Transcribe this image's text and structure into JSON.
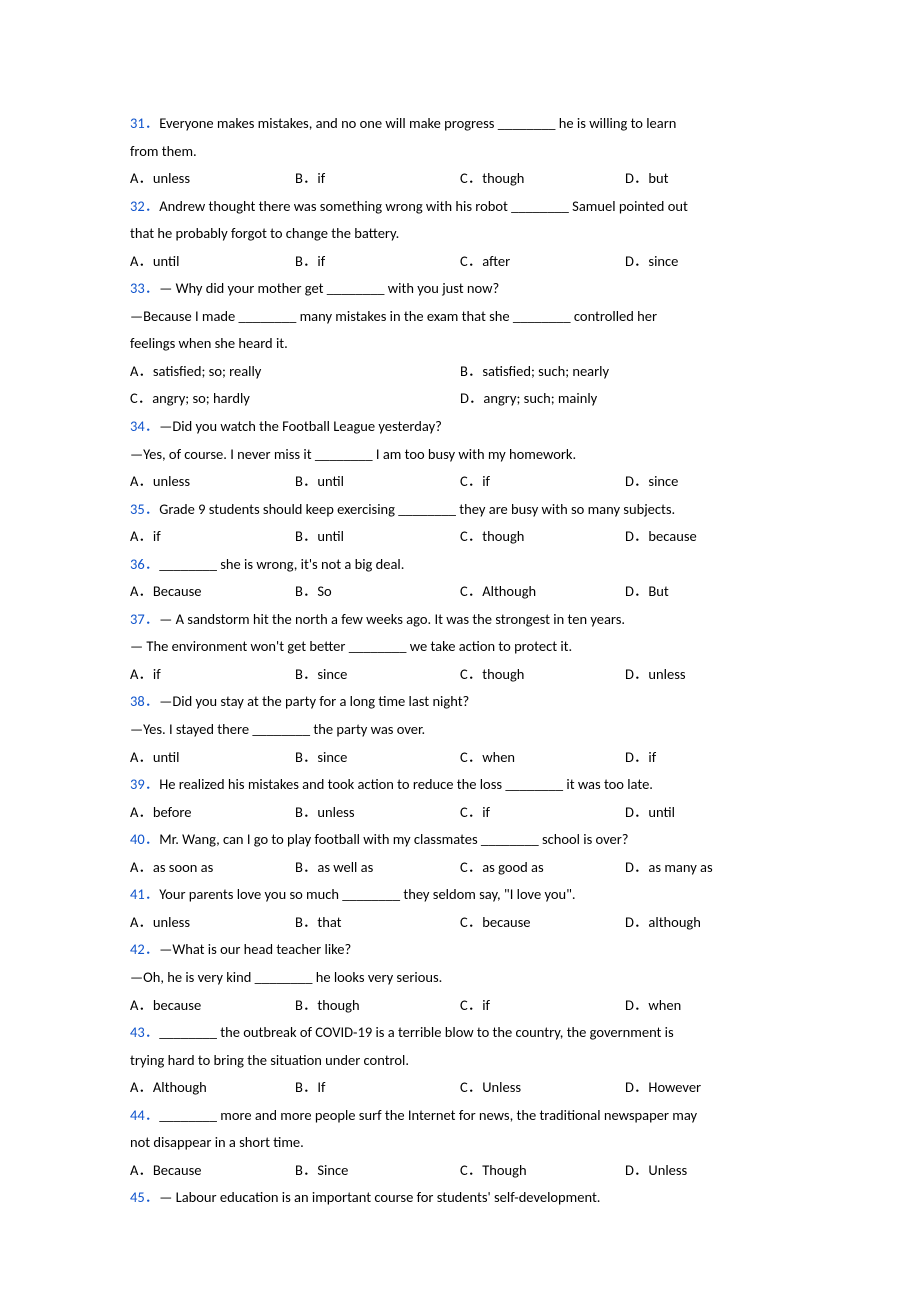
{
  "blank": "________",
  "questions": [
    {
      "num": "31",
      "lines": [
        "Everyone makes mistakes, and no one will make progress ________ he is willing to learn",
        "from them."
      ],
      "options": [
        "A．unless",
        "B．if",
        "C．though",
        "D．but"
      ],
      "cols": 4
    },
    {
      "num": "32",
      "lines": [
        "Andrew thought there was something wrong with his robot ________ Samuel pointed out",
        "that he probably forgot to change the battery."
      ],
      "options": [
        "A．until",
        "B．if",
        "C．after",
        "D．since"
      ],
      "cols": 4
    },
    {
      "num": "33",
      "lines": [
        "— Why did your mother get ________ with you just now?",
        "—Because I made ________ many mistakes in the exam that she ________ controlled her",
        "feelings when she heard it."
      ],
      "options": [
        "A．satisfied; so; really",
        "B．satisfied; such; nearly",
        "C．angry; so; hardly",
        "D．angry; such; mainly"
      ],
      "cols": 2
    },
    {
      "num": "34",
      "lines": [
        "—Did you watch the Football League yesterday?",
        "—Yes, of course. I never miss it ________ I am too busy with my homework."
      ],
      "options": [
        "A．unless",
        "B．until",
        "C．if",
        "D．since"
      ],
      "cols": 4
    },
    {
      "num": "35",
      "lines": [
        "Grade 9 students should keep exercising ________ they are busy with so many subjects."
      ],
      "options": [
        "A．if",
        "B．until",
        "C．though",
        "D．because"
      ],
      "cols": 4
    },
    {
      "num": "36",
      "lines": [
        "________ she is wrong, it's not a big deal."
      ],
      "options": [
        "A．Because",
        "B．So",
        "C．Although",
        "D．But"
      ],
      "cols": 4
    },
    {
      "num": "37",
      "lines": [
        "— A sandstorm hit the north a few weeks ago. It was the strongest in ten years.",
        "— The environment won't get better ________ we take action to protect it."
      ],
      "options": [
        "A．if",
        "B．since",
        "C．though",
        "D．unless"
      ],
      "cols": 4
    },
    {
      "num": "38",
      "lines": [
        "—Did you stay at the party for a long time last night?",
        "—Yes. I stayed there ________ the party was over."
      ],
      "options": [
        "A．until",
        "B．since",
        "C．when",
        "D．if"
      ],
      "cols": 4
    },
    {
      "num": "39",
      "lines": [
        "He realized his mistakes and took action to reduce the loss ________ it was too late."
      ],
      "options": [
        "A．before",
        "B．unless",
        "C．if",
        "D．until"
      ],
      "cols": 4
    },
    {
      "num": "40",
      "lines": [
        "Mr. Wang, can I go to play football with my classmates ________ school is over?"
      ],
      "options": [
        "A．as soon as",
        "B．as well as",
        "C．as good as",
        "D．as many as"
      ],
      "cols": 4
    },
    {
      "num": "41",
      "lines": [
        "Your parents love you so much ________ they seldom say, \"I love you\"."
      ],
      "options": [
        "A．unless",
        "B．that",
        "C．because",
        "D．although"
      ],
      "cols": 4
    },
    {
      "num": "42",
      "lines": [
        "—What is our head teacher like?",
        "—Oh, he is very kind ________ he looks very serious."
      ],
      "options": [
        "A．because",
        "B．though",
        "C．if",
        "D．when"
      ],
      "cols": 4
    },
    {
      "num": "43",
      "lines": [
        "________ the outbreak of COVID-19 is a terrible blow to the country, the government is",
        "trying hard to bring the situation under control."
      ],
      "options": [
        "A．Although",
        "B．If",
        "C．Unless",
        "D．However"
      ],
      "cols": 4
    },
    {
      "num": "44",
      "lines": [
        "________ more and more people surf the Internet for news, the traditional newspaper may",
        "not disappear in a short time."
      ],
      "options": [
        "A．Because",
        "B．Since",
        "C．Though",
        "D．Unless"
      ],
      "cols": 4
    },
    {
      "num": "45",
      "lines": [
        "— Labour education is an important course for students' self-development."
      ],
      "options": [],
      "cols": 0
    }
  ]
}
